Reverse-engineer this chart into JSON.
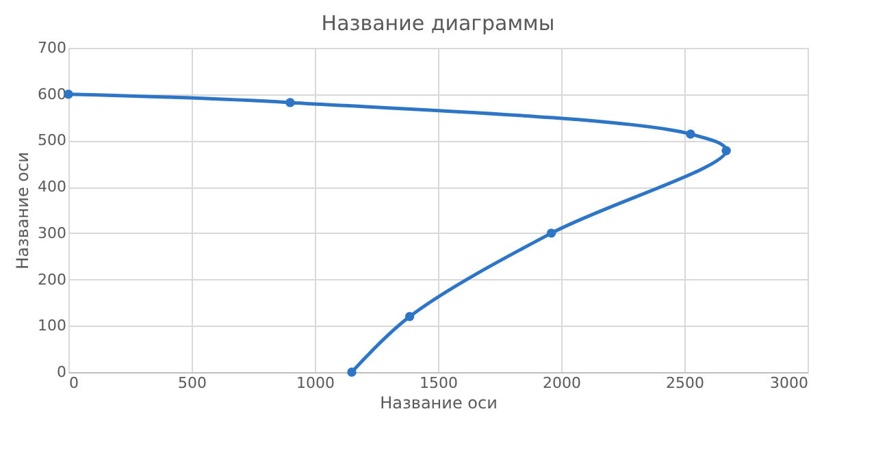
{
  "chart_data": {
    "type": "line",
    "title": "Название диаграммы",
    "xlabel": "Название оси",
    "ylabel": "Название оси",
    "x": [
      0,
      900,
      2525,
      2670,
      1960,
      1385,
      1150
    ],
    "series": [
      {
        "color": "#2e75c6",
        "values": [
          600,
          582,
          514,
          478,
          300,
          120,
          0
        ]
      }
    ],
    "xlim": [
      0,
      3000
    ],
    "xticks": [
      0,
      500,
      1000,
      1500,
      2000,
      2500,
      3000
    ],
    "ylim": [
      0,
      700
    ],
    "yticks": [
      0,
      100,
      200,
      300,
      400,
      500,
      600,
      700
    ],
    "grid": true,
    "marker": "circle",
    "line_style": "solid"
  }
}
